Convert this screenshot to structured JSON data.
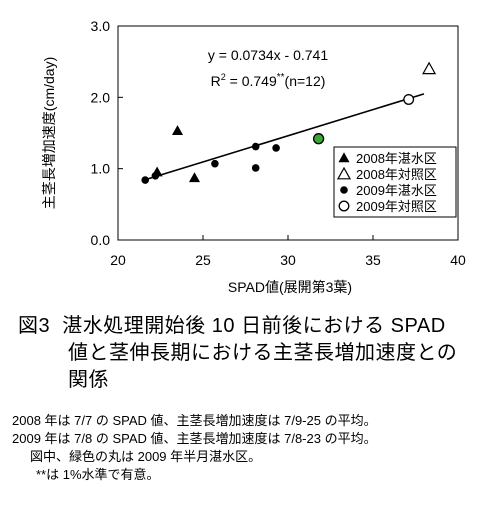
{
  "chart_data": {
    "type": "scatter",
    "xlabel": "SPAD値(展開第3葉)",
    "ylabel": "主茎長増加速度(cm/day)",
    "xlim": [
      20,
      40
    ],
    "ylim": [
      0,
      3
    ],
    "x_ticks": [
      "20",
      "25",
      "30",
      "35",
      "40"
    ],
    "y_ticks": [
      "0.0",
      "1.0",
      "2.0",
      "3.0"
    ],
    "grid": false,
    "legend_position": "lower-right",
    "equation": "y = 0.0734x - 0.741",
    "r2_prefix": "R",
    "r2_sup": "2",
    "r2_value": " = 0.749",
    "r2_stars": "**",
    "r2_n": "(n=12)",
    "trendline": {
      "slope": 0.0734,
      "intercept": -0.741,
      "x_range": [
        21.5,
        38
      ]
    },
    "series": [
      {
        "name": "2008年湛水区",
        "marker": "triangle-filled",
        "points": [
          [
            23.5,
            1.53
          ],
          [
            24.5,
            0.87
          ],
          [
            22.3,
            0.95
          ]
        ]
      },
      {
        "name": "2008年対照区",
        "marker": "triangle-open",
        "points": [
          [
            38.3,
            2.4
          ]
        ]
      },
      {
        "name": "2009年湛水区",
        "marker": "circle-filled",
        "points": [
          [
            21.6,
            0.84
          ],
          [
            22.2,
            0.9
          ],
          [
            25.7,
            1.07
          ],
          [
            28.1,
            1.31
          ],
          [
            28.1,
            1.01
          ],
          [
            29.3,
            1.29
          ]
        ]
      },
      {
        "name": "2009年対照区",
        "marker": "circle-open",
        "points": [
          [
            37.1,
            1.97
          ]
        ]
      }
    ],
    "highlight": {
      "marker": "circle-green",
      "points": [
        [
          31.8,
          1.42
        ]
      ]
    }
  },
  "caption": {
    "number": "図3",
    "line1": "湛水処理開始後 10 日前後における SPAD",
    "line2": "値と茎伸長期における主茎長増加速度との",
    "line3": "関係"
  },
  "notes": {
    "line1": "2008 年は 7/7 の SPAD 値、主茎長増加速度は 7/9-25 の平均。",
    "line2": "2009 年は 7/8 の SPAD 値、主茎長増加速度は 7/8-23 の平均。",
    "line3": "図中、緑色の丸は 2009 年半月湛水区。",
    "line4": "**は 1%水準で有意。"
  },
  "colors": {
    "axis": "#000000",
    "highlight_fill": "#3aa63a",
    "marker": "#000000"
  }
}
